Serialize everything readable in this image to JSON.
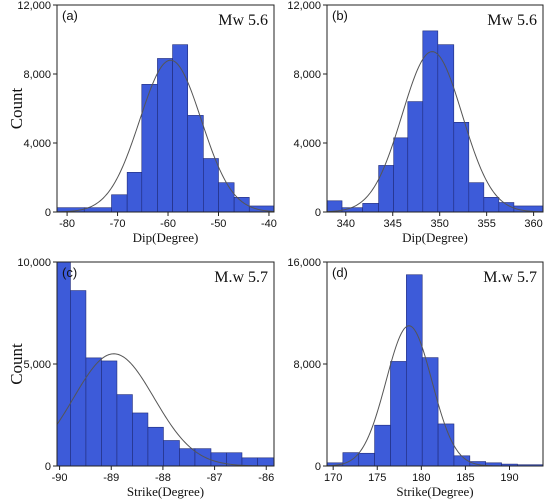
{
  "chart_data": [
    {
      "type": "bar",
      "panel_label": "(a)",
      "annotation": "Mw 5.6",
      "xlabel": "Dip(Degree)",
      "ylabel": "Count",
      "xlim": [
        -82,
        -39
      ],
      "ylim": [
        0,
        12000
      ],
      "xticks": [
        -80,
        -70,
        -60,
        -50,
        -40
      ],
      "xtick_labels": [
        "-80",
        "-70",
        "-60",
        "-50",
        "-40"
      ],
      "yticks": [
        0,
        4000,
        8000,
        12000
      ],
      "ytick_labels": [
        "0",
        "4,000",
        "8,000",
        "12,000"
      ],
      "bins": [
        [
          -82,
          -76.6
        ],
        [
          -76.6,
          -71.2
        ],
        [
          -71.2,
          -68.1
        ],
        [
          -68.1,
          -65.2
        ],
        [
          -65.2,
          -62.1
        ],
        [
          -62.1,
          -59.1
        ],
        [
          -59.1,
          -56.1
        ],
        [
          -56.1,
          -53
        ],
        [
          -53,
          -50
        ],
        [
          -50,
          -46.9
        ],
        [
          -46.9,
          -43.9
        ],
        [
          -43.9,
          -39
        ]
      ],
      "values": [
        250,
        250,
        1000,
        2300,
        7400,
        8900,
        9700,
        5600,
        3100,
        1700,
        850,
        350
      ],
      "fit_curve": {
        "type": "normal",
        "mean": -59.5,
        "sd": 6.1,
        "peak": 8800
      },
      "bar_color": "#3d5bd9",
      "grid": false
    },
    {
      "type": "bar",
      "panel_label": "(b)",
      "annotation": "Mw 5.6",
      "xlabel": "Dip(Degree)",
      "ylabel": "",
      "xlim": [
        338,
        361
      ],
      "ylim": [
        0,
        12000
      ],
      "xticks": [
        340,
        345,
        350,
        355,
        360
      ],
      "xtick_labels": [
        "340",
        "345",
        "350",
        "355",
        "360"
      ],
      "yticks": [
        0,
        4000,
        8000,
        12000
      ],
      "ytick_labels": [
        "0",
        "4,000",
        "8,000",
        "12,000"
      ],
      "bins": [
        [
          338,
          339.6
        ],
        [
          339.6,
          341.8
        ],
        [
          341.8,
          343.5
        ],
        [
          343.5,
          345.1
        ],
        [
          345.1,
          346.6
        ],
        [
          346.6,
          348.2
        ],
        [
          348.2,
          349.8
        ],
        [
          349.8,
          351.5
        ],
        [
          351.5,
          353.1
        ],
        [
          353.1,
          354.7
        ],
        [
          354.7,
          356.3
        ],
        [
          356.3,
          357.9
        ],
        [
          357.9,
          361
        ]
      ],
      "values": [
        650,
        250,
        500,
        2700,
        4300,
        6400,
        10500,
        9700,
        5200,
        1700,
        850,
        550,
        350
      ],
      "fit_curve": {
        "type": "normal",
        "mean": 349.2,
        "sd": 3.2,
        "peak": 9300
      },
      "bar_color": "#3d5bd9",
      "grid": false
    },
    {
      "type": "bar",
      "panel_label": "(c)",
      "annotation": "M.w 5.7",
      "xlabel": "Strike(Degree)",
      "ylabel": "Count",
      "xlim": [
        -90.05,
        -85.85
      ],
      "ylim": [
        0,
        10000
      ],
      "xticks": [
        -90,
        -89,
        -88,
        -87,
        -86
      ],
      "xtick_labels": [
        "-90",
        "-89",
        "-88",
        "-87",
        "-86"
      ],
      "yticks": [
        0,
        5000,
        10000
      ],
      "ytick_labels": [
        "0",
        "5,000",
        "10,000"
      ],
      "bins": [
        [
          -90.05,
          -89.79
        ],
        [
          -89.79,
          -89.49
        ],
        [
          -89.49,
          -89.19
        ],
        [
          -89.19,
          -88.89
        ],
        [
          -88.89,
          -88.59
        ],
        [
          -88.59,
          -88.29
        ],
        [
          -88.29,
          -87.99
        ],
        [
          -87.99,
          -87.68
        ],
        [
          -87.68,
          -87.38
        ],
        [
          -87.38,
          -87.07
        ],
        [
          -87.07,
          -86.77
        ],
        [
          -86.77,
          -86.47
        ],
        [
          -86.47,
          -86.17
        ],
        [
          -86.17,
          -85.85
        ]
      ],
      "values": [
        10000,
        8600,
        5300,
        5150,
        3500,
        2600,
        1900,
        1250,
        850,
        850,
        650,
        650,
        400,
        400
      ],
      "fit_curve": {
        "type": "normal",
        "mean": -88.95,
        "sd": 0.78,
        "peak": 5500
      },
      "bar_color": "#3d5bd9",
      "grid": false
    },
    {
      "type": "bar",
      "panel_label": "(d)",
      "annotation": "M.w 5.7",
      "xlabel": "Strike(Degree)",
      "ylabel": "",
      "xlim": [
        169.3,
        193.8
      ],
      "ylim": [
        0,
        16000
      ],
      "xticks": [
        170,
        175,
        180,
        185,
        190
      ],
      "xtick_labels": [
        "170",
        "175",
        "180",
        "185",
        "190"
      ],
      "yticks": [
        0,
        8000,
        16000
      ],
      "ytick_labels": [
        "0",
        "8,000",
        "16,000"
      ],
      "bins": [
        [
          169.3,
          171.1
        ],
        [
          171.1,
          172.9
        ],
        [
          172.9,
          174.7
        ],
        [
          174.7,
          176.5
        ],
        [
          176.5,
          178.3
        ],
        [
          178.3,
          180.1
        ],
        [
          180.1,
          181.9
        ],
        [
          181.9,
          183.7
        ],
        [
          183.7,
          185.5
        ],
        [
          185.5,
          187.3
        ],
        [
          187.3,
          189.1
        ],
        [
          189.1,
          190.9
        ],
        [
          190.9,
          193.8
        ]
      ],
      "values": [
        250,
        1050,
        1000,
        3200,
        8200,
        15000,
        8500,
        3300,
        800,
        350,
        250,
        150,
        100
      ],
      "fit_curve": {
        "type": "normal",
        "mean": 178.6,
        "sd": 2.6,
        "peak": 11000
      },
      "bar_color": "#3d5bd9",
      "grid": false
    }
  ]
}
